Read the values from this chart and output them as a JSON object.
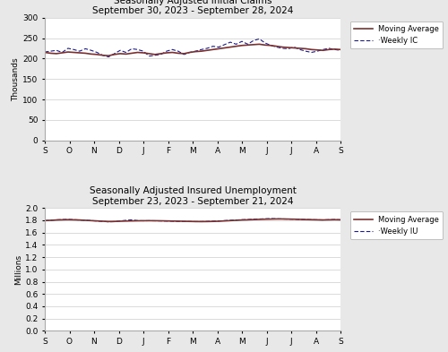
{
  "top_title": "Seasonally Adjusted Initial Claims",
  "top_subtitle": "September 30, 2023 - September 28, 2024",
  "bottom_title": "Seasonally Adjusted Insured Unemployment",
  "bottom_subtitle": "September 23, 2023 - September 21, 2024",
  "top_ylabel": "Thousands",
  "bottom_ylabel": "Millions",
  "top_yticks": [
    0,
    50,
    100,
    150,
    200,
    250,
    300
  ],
  "bottom_yticks": [
    0.0,
    0.2,
    0.4,
    0.6,
    0.8,
    1.0,
    1.2,
    1.4,
    1.6,
    1.8,
    2.0
  ],
  "x_labels": [
    "S",
    "O",
    "N",
    "D",
    "J",
    "F",
    "M",
    "A",
    "M",
    "J",
    "J",
    "A",
    "S"
  ],
  "moving_avg_color": "#7B3030",
  "weekly_color": "#1a1a8c",
  "background_color": "#e8e8e8",
  "plot_bg_color": "#ffffff",
  "top_ma": [
    215,
    213,
    212,
    214,
    216,
    215,
    214,
    213,
    211,
    210,
    208,
    207,
    210,
    212,
    211,
    213,
    215,
    214,
    212,
    210,
    212,
    214,
    215,
    213,
    212,
    215,
    217,
    218,
    220,
    222,
    224,
    226,
    228,
    230,
    232,
    233,
    234,
    235,
    233,
    232,
    230,
    228,
    227,
    226,
    225,
    224,
    222,
    221,
    220,
    222,
    223,
    222
  ],
  "top_weekly": [
    216,
    218,
    220,
    215,
    225,
    222,
    218,
    224,
    220,
    215,
    208,
    204,
    212,
    220,
    215,
    224,
    222,
    218,
    206,
    208,
    210,
    218,
    222,
    218,
    210,
    215,
    218,
    222,
    225,
    230,
    228,
    234,
    240,
    235,
    242,
    235,
    244,
    248,
    238,
    232,
    228,
    225,
    224,
    228,
    222,
    218,
    215,
    218,
    222,
    225,
    222,
    220
  ],
  "bottom_ma": [
    1.795,
    1.8,
    1.805,
    1.808,
    1.81,
    1.808,
    1.805,
    1.8,
    1.795,
    1.79,
    1.785,
    1.78,
    1.782,
    1.785,
    1.788,
    1.79,
    1.792,
    1.793,
    1.794,
    1.793,
    1.792,
    1.79,
    1.788,
    1.786,
    1.784,
    1.782,
    1.78,
    1.779,
    1.78,
    1.782,
    1.785,
    1.79,
    1.795,
    1.8,
    1.805,
    1.808,
    1.812,
    1.815,
    1.818,
    1.82,
    1.822,
    1.822,
    1.82,
    1.818,
    1.815,
    1.812,
    1.81,
    1.808,
    1.806,
    1.808,
    1.81,
    1.808
  ],
  "bottom_weekly": [
    1.795,
    1.8,
    1.808,
    1.812,
    1.815,
    1.81,
    1.805,
    1.8,
    1.795,
    1.788,
    1.782,
    1.775,
    1.778,
    1.79,
    1.8,
    1.808,
    1.795,
    1.792,
    1.793,
    1.792,
    1.79,
    1.788,
    1.785,
    1.782,
    1.78,
    1.78,
    1.778,
    1.779,
    1.782,
    1.786,
    1.79,
    1.795,
    1.8,
    1.805,
    1.81,
    1.812,
    1.818,
    1.822,
    1.825,
    1.828,
    1.825,
    1.822,
    1.82,
    1.818,
    1.815,
    1.812,
    1.81,
    1.808,
    1.806,
    1.81,
    1.812,
    1.808
  ],
  "title_fontsize": 7.5,
  "tick_fontsize": 6.5,
  "legend_fontsize": 6.0
}
